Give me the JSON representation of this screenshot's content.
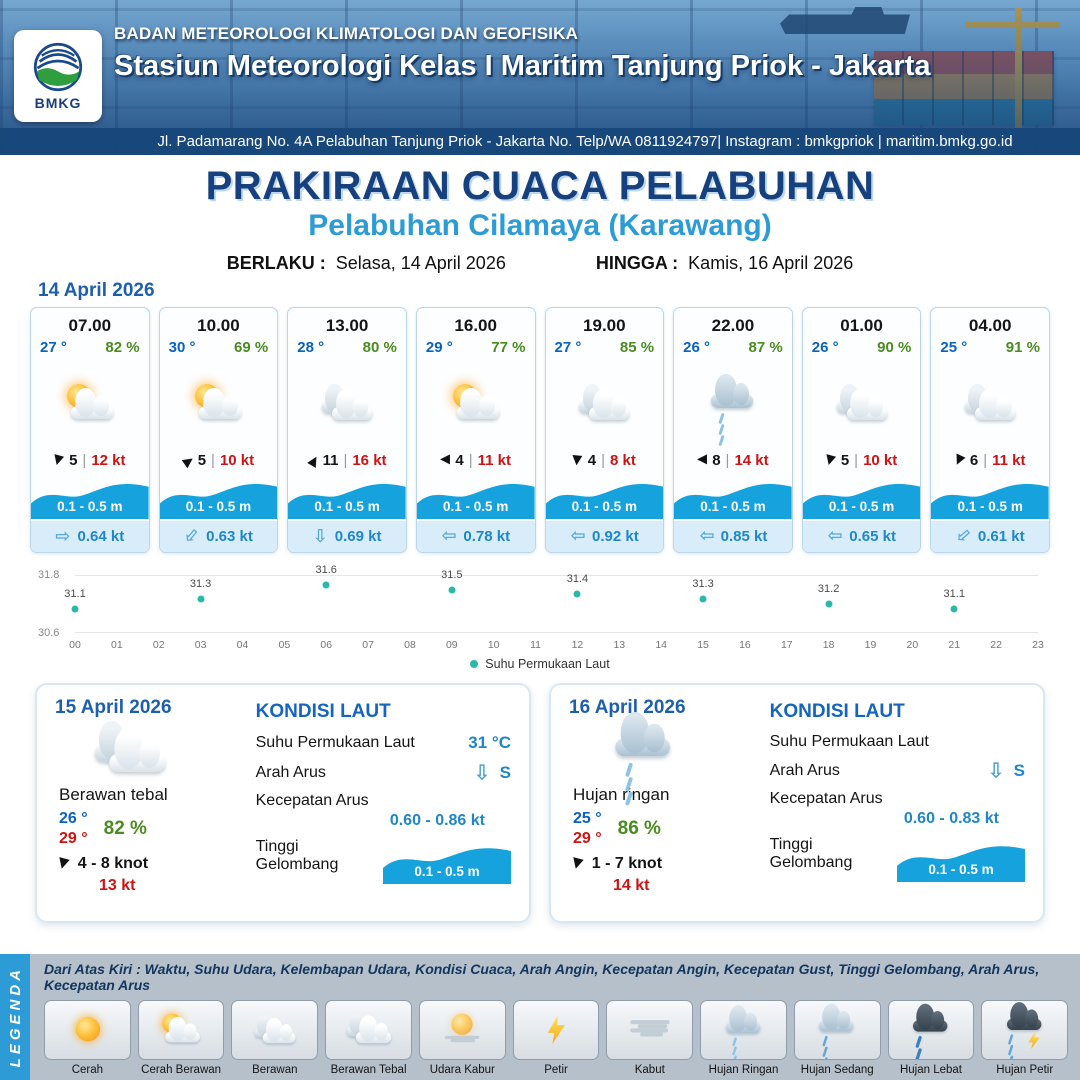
{
  "header": {
    "agency": "BADAN METEOROLOGI KLIMATOLOGI DAN GEOFISIKA",
    "station": "Stasiun Meteorologi Kelas I Maritim Tanjung Priok - Jakarta",
    "address": "Jl. Padamarang No. 4A Pelabuhan Tanjung Priok - Jakarta No. Telp/WA 0811924797| Instagram : bmkgpriok | maritim.bmkg.go.id",
    "logo_text": "BMKG"
  },
  "title": {
    "heading": "PRAKIRAAN CUACA PELABUHAN",
    "subheading": "Pelabuhan Cilamaya (Karawang)",
    "valid_from_label": "BERLAKU :",
    "valid_from_value": "Selasa, 14 April 2026",
    "valid_until_label": "HINGGA :",
    "valid_until_value": "Kamis, 16 April 2026"
  },
  "glyphs": {
    "wind_arrow": "▶",
    "current_arrow": "⇨"
  },
  "forecast": {
    "date_label": "14 April 2026",
    "wind_divider": "|",
    "cards": [
      {
        "time": "07.00",
        "temp": "27 °",
        "humidity": "82 %",
        "icon": "cerah-berawan",
        "wind_speed": "5",
        "gust": "12 kt",
        "wind_rot": 105,
        "wave": "0.1 - 0.5 m",
        "current": "0.64 kt",
        "current_rot": 0
      },
      {
        "time": "10.00",
        "temp": "30 °",
        "humidity": "69 %",
        "icon": "cerah-berawan",
        "wind_speed": "5",
        "gust": "10 kt",
        "wind_rot": -35,
        "wave": "0.1 - 0.5 m",
        "current": "0.63 kt",
        "current_rot": 130
      },
      {
        "time": "13.00",
        "temp": "28 °",
        "humidity": "80 %",
        "icon": "berawan",
        "wind_speed": "11",
        "gust": "16 kt",
        "wind_rot": -60,
        "wave": "0.1 - 0.5 m",
        "current": "0.69 kt",
        "current_rot": 90
      },
      {
        "time": "16.00",
        "temp": "29 °",
        "humidity": "77 %",
        "icon": "cerah-berawan",
        "wind_speed": "4",
        "gust": "11 kt",
        "wind_rot": 180,
        "wave": "0.1 - 0.5 m",
        "current": "0.78 kt",
        "current_rot": 180
      },
      {
        "time": "19.00",
        "temp": "27 °",
        "humidity": "85 %",
        "icon": "berawan",
        "wind_speed": "4",
        "gust": "8 kt",
        "wind_rot": 95,
        "wave": "0.1 - 0.5 m",
        "current": "0.92 kt",
        "current_rot": 180
      },
      {
        "time": "22.00",
        "temp": "26 °",
        "humidity": "87 %",
        "icon": "hujan-ringan",
        "wind_speed": "8",
        "gust": "14 kt",
        "wind_rot": 180,
        "wave": "0.1 - 0.5 m",
        "current": "0.85 kt",
        "current_rot": 180
      },
      {
        "time": "01.00",
        "temp": "26 °",
        "humidity": "90 %",
        "icon": "berawan",
        "wind_speed": "5",
        "gust": "10 kt",
        "wind_rot": 105,
        "wave": "0.1 - 0.5 m",
        "current": "0.65 kt",
        "current_rot": 180
      },
      {
        "time": "04.00",
        "temp": "25 °",
        "humidity": "91 %",
        "icon": "berawan",
        "wind_speed": "6",
        "gust": "11 kt",
        "wind_rot": 115,
        "wave": "0.1 - 0.5 m",
        "current": "0.61 kt",
        "current_rot": 140
      }
    ]
  },
  "chart_data": {
    "type": "scatter",
    "series_label": "Suhu Permukaan Laut",
    "x": [
      0,
      3,
      6,
      9,
      12,
      15,
      18,
      21
    ],
    "values": [
      31.1,
      31.3,
      31.6,
      31.5,
      31.4,
      31.3,
      31.2,
      31.1
    ],
    "xticks": [
      "00",
      "01",
      "02",
      "03",
      "04",
      "05",
      "06",
      "07",
      "08",
      "09",
      "10",
      "11",
      "12",
      "13",
      "14",
      "15",
      "16",
      "17",
      "18",
      "19",
      "20",
      "21",
      "22",
      "23"
    ],
    "ylim": [
      30.6,
      31.8
    ],
    "yticks": [
      "31.8",
      "30.6"
    ],
    "point_color": "#2ab9a9",
    "grid": true,
    "legend_position": "bottom"
  },
  "daily": [
    {
      "date": "15 April 2026",
      "icon": "berawan-tebal",
      "condition": "Berawan tebal",
      "temp_min": "26 °",
      "temp_max": "29 °",
      "humidity": "82 %",
      "wind_range": "4 - 8 knot",
      "gust": "13 kt",
      "wind_rot": 105,
      "sea": {
        "heading": "KONDISI LAUT",
        "sst_label": "Suhu Permukaan Laut",
        "sst_value": "31 °C",
        "current_dir_label": "Arah Arus",
        "current_dir_value": "S",
        "current_rot": 90,
        "current_speed_label": "Kecepatan Arus",
        "current_speed_value": "0.60 - 0.86 kt",
        "wave_label": "Tinggi Gelombang",
        "wave_value": "0.1 - 0.5 m"
      }
    },
    {
      "date": "16 April 2026",
      "icon": "hujan-ringan",
      "condition": "Hujan ringan",
      "temp_min": "25 °",
      "temp_max": "29 °",
      "humidity": "86 %",
      "wind_range": "1 - 7 knot",
      "gust": "14 kt",
      "wind_rot": 105,
      "sea": {
        "heading": "KONDISI LAUT",
        "sst_label": "Suhu Permukaan Laut",
        "sst_value": "",
        "current_dir_label": "Arah Arus",
        "current_dir_value": "S",
        "current_rot": 90,
        "current_speed_label": "Kecepatan Arus",
        "current_speed_value": "0.60 - 0.83 kt",
        "wave_label": "Tinggi Gelombang",
        "wave_value": "0.1 - 0.5 m"
      }
    }
  ],
  "legend": {
    "vertical_label": "LEGENDA",
    "caption": "Dari Atas Kiri : Waktu, Suhu Udara, Kelembapan Udara, Kondisi Cuaca, Arah Angin, Kecepatan Angin, Kecepatan Gust, Tinggi Gelombang, Arah Arus, Kecepatan Arus",
    "items": [
      {
        "label": "Cerah",
        "icon": "cerah"
      },
      {
        "label": "Cerah Berawan",
        "icon": "cerah-berawan"
      },
      {
        "label": "Berawan",
        "icon": "berawan"
      },
      {
        "label": "Berawan Tebal",
        "icon": "berawan-tebal"
      },
      {
        "label": "Udara Kabur",
        "icon": "udara-kabur"
      },
      {
        "label": "Petir",
        "icon": "petir"
      },
      {
        "label": "Kabut",
        "icon": "kabut"
      },
      {
        "label": "Hujan Ringan",
        "icon": "hujan-ringan"
      },
      {
        "label": "Hujan Sedang",
        "icon": "hujan-sedang"
      },
      {
        "label": "Hujan Lebat",
        "icon": "hujan-lebat"
      },
      {
        "label": "Hujan Petir",
        "icon": "hujan-petir"
      }
    ]
  },
  "colors": {
    "navy": "#16407e",
    "sky_blue": "#2d9bd6",
    "temp_blue": "#0a62c0",
    "humidity_green": "#4a8c1f",
    "gust_red": "#cf1212",
    "wave_blue": "#16a3dd",
    "current_blue": "#1d87c9"
  }
}
